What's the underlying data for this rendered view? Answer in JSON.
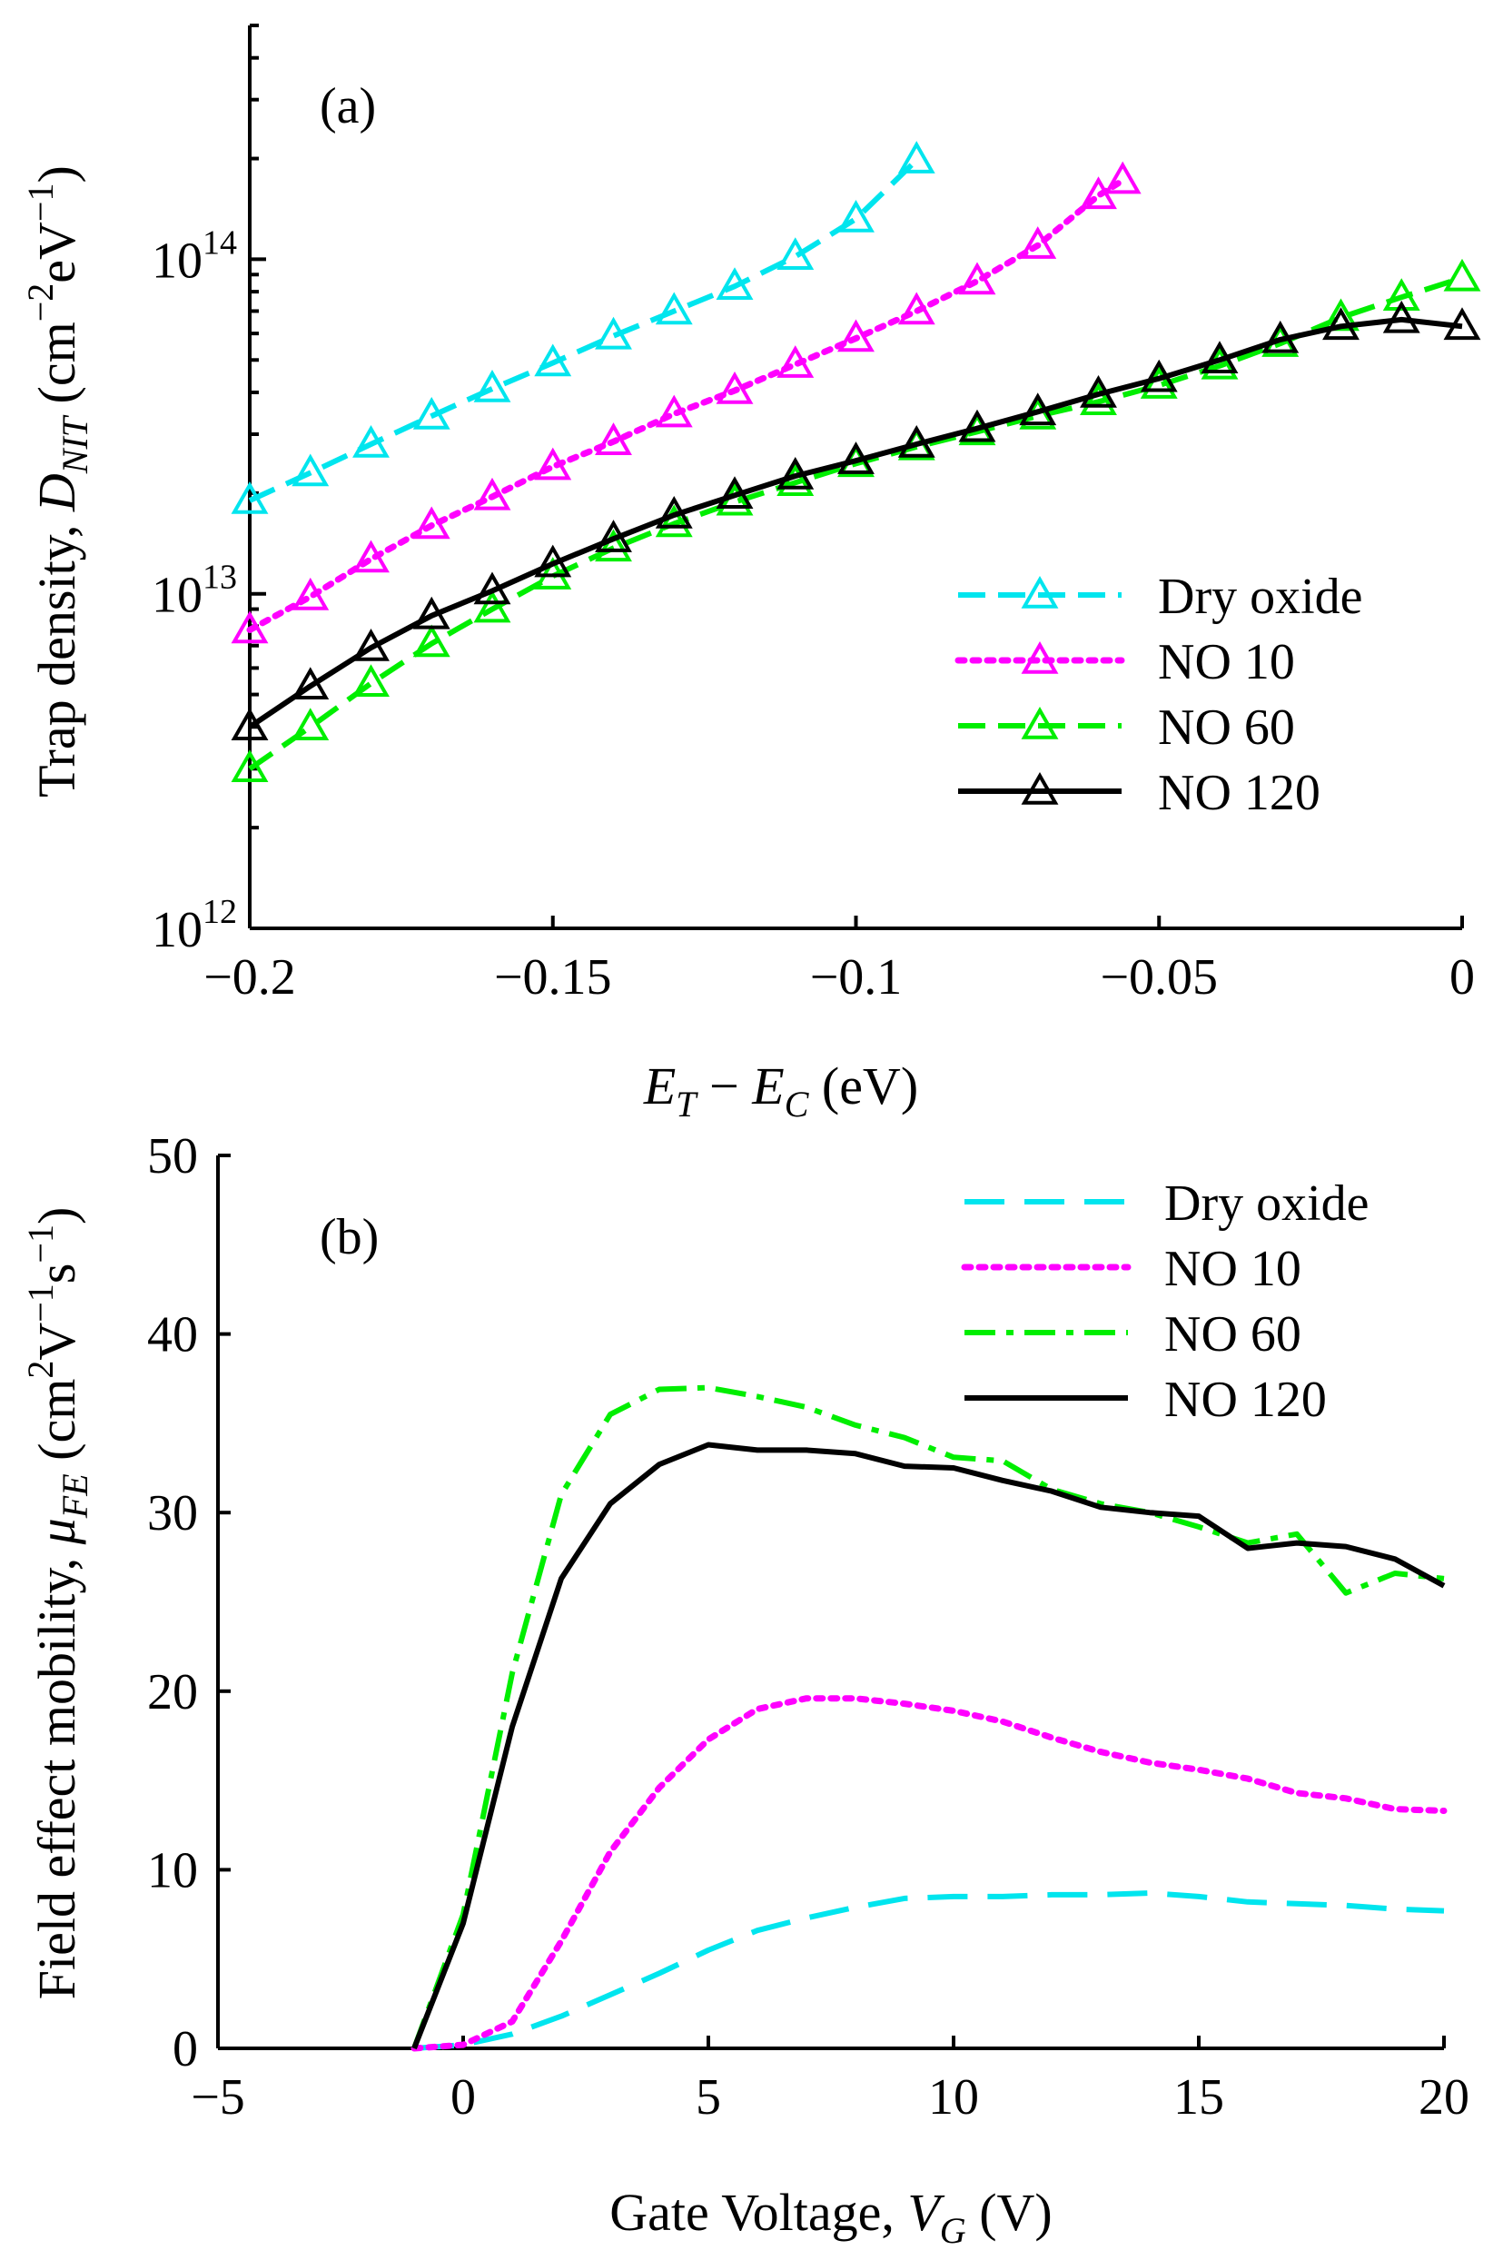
{
  "chart_data": [
    {
      "type": "line",
      "panel_label": "(a)",
      "yscale": "log",
      "xlim": [
        -0.2,
        0
      ],
      "ylim": [
        1000000000000.0,
        500000000000000.0
      ],
      "xticks": [
        -0.2,
        -0.15,
        -0.1,
        -0.05,
        0
      ],
      "xtick_labels": [
        "−0.2",
        "−0.15",
        "−0.1",
        "−0.05",
        "0"
      ],
      "yticks": [
        1000000000000.0,
        10000000000000.0,
        100000000000000.0
      ],
      "ytick_labels": [
        {
          "base": "10",
          "exp": "12"
        },
        {
          "base": "10",
          "exp": "13"
        },
        {
          "base": "10",
          "exp": "14"
        }
      ],
      "xlabel": {
        "v1": "E",
        "s1": "T",
        "op": " − ",
        "v2": "E",
        "s2": "C",
        "unit": " (eV)"
      },
      "ylabel": {
        "text": "Trap density, ",
        "var": "D",
        "sub": "NIT",
        "unit_pre": " (cm",
        "e1": "−2",
        "mid": "eV",
        "e2": "−1",
        "close": ")"
      },
      "legend_position": "lower-right",
      "series": [
        {
          "name": "Dry oxide",
          "color": "#00e5ee",
          "dash": "dashed",
          "marker": "triangle",
          "x": [
            -0.2,
            -0.19,
            -0.18,
            -0.17,
            -0.16,
            -0.15,
            -0.14,
            -0.13,
            -0.12,
            -0.11,
            -0.1,
            -0.09
          ],
          "y": [
            19000000000000.0,
            23000000000000.0,
            28000000000000.0,
            34000000000000.0,
            41000000000000.0,
            49000000000000.0,
            59000000000000.0,
            70000000000000.0,
            83000000000000.0,
            102000000000000.0,
            132000000000000.0,
            198000000000000.0
          ]
        },
        {
          "name": "NO 10",
          "color": "#ff00ff",
          "dash": "dotted",
          "marker": "triangle",
          "x": [
            -0.2,
            -0.19,
            -0.18,
            -0.17,
            -0.16,
            -0.15,
            -0.14,
            -0.13,
            -0.12,
            -0.11,
            -0.1,
            -0.09,
            -0.08,
            -0.07,
            -0.06,
            -0.056
          ],
          "y": [
            7800000000000.0,
            9800000000000.0,
            12700000000000.0,
            16000000000000.0,
            19500000000000.0,
            24000000000000.0,
            28500000000000.0,
            34500000000000.0,
            40500000000000.0,
            48500000000000.0,
            58000000000000.0,
            70000000000000.0,
            86000000000000.0,
            110000000000000.0,
            155000000000000.0,
            172000000000000.0
          ]
        },
        {
          "name": "NO 60",
          "color": "#00ee00",
          "dash": "dashed",
          "marker": "triangle",
          "x": [
            -0.2,
            -0.19,
            -0.18,
            -0.17,
            -0.16,
            -0.15,
            -0.14,
            -0.13,
            -0.12,
            -0.11,
            -0.1,
            -0.09,
            -0.08,
            -0.07,
            -0.06,
            -0.05,
            -0.04,
            -0.03,
            -0.02,
            -0.01,
            0
          ],
          "y": [
            3000000000000.0,
            4000000000000.0,
            5400000000000.0,
            7100000000000.0,
            9000000000000.0,
            11300000000000.0,
            13700000000000.0,
            16200000000000.0,
            18800000000000.0,
            21500000000000.0,
            24500000000000.0,
            27500000000000.0,
            30500000000000.0,
            34000000000000.0,
            37500000000000.0,
            42000000000000.0,
            48000000000000.0,
            56000000000000.0,
            67000000000000.0,
            77000000000000.0,
            88000000000000.0
          ]
        },
        {
          "name": "NO 120",
          "color": "#000000",
          "dash": "solid",
          "marker": "triangle",
          "x": [
            -0.2,
            -0.19,
            -0.18,
            -0.17,
            -0.16,
            -0.15,
            -0.14,
            -0.13,
            -0.12,
            -0.11,
            -0.1,
            -0.09,
            -0.08,
            -0.07,
            -0.06,
            -0.05,
            -0.04,
            -0.03,
            -0.02,
            -0.01,
            0
          ],
          "y": [
            4000000000000.0,
            5300000000000.0,
            6900000000000.0,
            8600000000000.0,
            10200000000000.0,
            12300000000000.0,
            14600000000000.0,
            17200000000000.0,
            19700000000000.0,
            22500000000000.0,
            25000000000000.0,
            28000000000000.0,
            31200000000000.0,
            35000000000000.0,
            39500000000000.0,
            44000000000000.0,
            50000000000000.0,
            57500000000000.0,
            63000000000000.0,
            66000000000000.0,
            63000000000000.0
          ]
        }
      ]
    },
    {
      "type": "line",
      "panel_label": "(b)",
      "yscale": "linear",
      "xlim": [
        -5,
        20
      ],
      "ylim": [
        0,
        50
      ],
      "xticks": [
        -5,
        0,
        5,
        10,
        15,
        20
      ],
      "xtick_labels": [
        "−5",
        "0",
        "5",
        "10",
        "15",
        "20"
      ],
      "yticks": [
        0,
        10,
        20,
        30,
        40,
        50
      ],
      "ytick_labels": [
        "0",
        "10",
        "20",
        "30",
        "40",
        "50"
      ],
      "xlabel": {
        "text": "Gate Voltage, ",
        "var": "V",
        "sub": "G",
        "unit": " (V)"
      },
      "ylabel": {
        "text": "Field effect mobility, ",
        "var": "μ",
        "sub": "FE",
        "unit_pre": " (cm",
        "e0": "2",
        "mid": "V",
        "e1": "−1",
        "mid2": "s",
        "e2": "−1",
        "close": ")"
      },
      "legend_position": "top-right",
      "series": [
        {
          "name": "Dry oxide",
          "color": "#00e5ee",
          "dash": "longdash",
          "x": [
            -1,
            0,
            1,
            2,
            3,
            4,
            5,
            6,
            7,
            8,
            9,
            10,
            11,
            12,
            13,
            14,
            15,
            16,
            17,
            18,
            19,
            20
          ],
          "y": [
            0,
            0.2,
            0.8,
            1.8,
            3.0,
            4.2,
            5.5,
            6.6,
            7.3,
            7.9,
            8.4,
            8.5,
            8.5,
            8.6,
            8.6,
            8.7,
            8.5,
            8.2,
            8.1,
            8.0,
            7.8,
            7.7
          ]
        },
        {
          "name": "NO 10",
          "color": "#ff00ff",
          "dash": "dotted",
          "x": [
            -1,
            0,
            1,
            2,
            3,
            4,
            5,
            6,
            7,
            8,
            9,
            10,
            11,
            12,
            13,
            14,
            15,
            16,
            17,
            18,
            19,
            20
          ],
          "y": [
            0,
            0.2,
            1.5,
            6.0,
            11.0,
            14.6,
            17.3,
            19.0,
            19.6,
            19.6,
            19.3,
            18.9,
            18.3,
            17.4,
            16.6,
            16.0,
            15.6,
            15.1,
            14.3,
            14.0,
            13.4,
            13.3
          ]
        },
        {
          "name": "NO 60",
          "color": "#00ee00",
          "dash": "dashdot",
          "x": [
            -1,
            0,
            1,
            2,
            3,
            4,
            5,
            6,
            7,
            8,
            9,
            10,
            11,
            12,
            13,
            14,
            15,
            16,
            17,
            18,
            19,
            20
          ],
          "y": [
            0,
            7.5,
            21.0,
            31.0,
            35.5,
            36.9,
            37.0,
            36.5,
            35.9,
            34.9,
            34.2,
            33.1,
            32.9,
            31.3,
            30.5,
            30.0,
            29.2,
            28.3,
            28.8,
            25.5,
            26.6,
            26.3
          ]
        },
        {
          "name": "NO 120",
          "color": "#000000",
          "dash": "solid",
          "x": [
            -1,
            0,
            1,
            2,
            3,
            4,
            5,
            6,
            7,
            8,
            9,
            10,
            11,
            12,
            13,
            14,
            15,
            16,
            17,
            18,
            19,
            20
          ],
          "y": [
            0,
            7.0,
            18.0,
            26.3,
            30.5,
            32.7,
            33.8,
            33.5,
            33.5,
            33.3,
            32.6,
            32.5,
            31.8,
            31.2,
            30.3,
            30.0,
            29.8,
            28.0,
            28.3,
            28.1,
            27.4,
            25.9
          ]
        }
      ]
    }
  ]
}
